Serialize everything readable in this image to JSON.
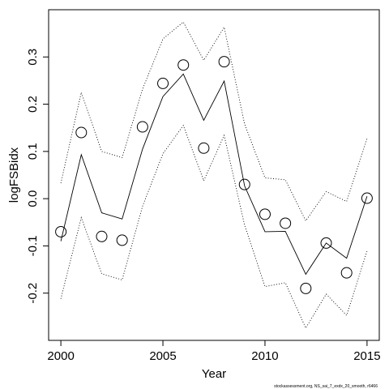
{
  "chart_data": {
    "type": "line",
    "title": "",
    "xlabel": "Year",
    "ylabel": "logFSBidx",
    "footnote": "stockassessment.org, NS_sai_7_exdx_20_smooth, r6466",
    "xlim": [
      1999.4,
      2015.6
    ],
    "ylim": [
      -0.3,
      0.4
    ],
    "x_ticks": [
      2000,
      2005,
      2010,
      2015
    ],
    "y_ticks": [
      -0.2,
      -0.1,
      0.0,
      0.1,
      0.2,
      0.3
    ],
    "x_tick_labels": [
      "2000",
      "2005",
      "2010",
      "2015"
    ],
    "y_tick_labels": [
      "-0.2",
      "-0.1",
      "0.0",
      "0.1",
      "0.2",
      "0.3"
    ],
    "grid": false,
    "x": [
      2000,
      2001,
      2002,
      2003,
      2004,
      2005,
      2006,
      2007,
      2008,
      2009,
      2010,
      2011,
      2012,
      2013,
      2014,
      2015
    ],
    "series": [
      {
        "style": "open-circles",
        "values": [
          -0.07,
          0.14,
          -0.08,
          -0.088,
          0.152,
          0.244,
          0.283,
          0.107,
          0.29,
          0.03,
          -0.033,
          -0.052,
          -0.19,
          -0.094,
          -0.157,
          0.001
        ]
      },
      {
        "style": "solid-line",
        "values": [
          -0.09,
          0.093,
          -0.03,
          -0.043,
          0.105,
          0.216,
          0.264,
          0.166,
          0.249,
          0.027,
          -0.07,
          -0.069,
          -0.16,
          -0.094,
          -0.126,
          0.005
        ]
      },
      {
        "style": "dotted-line",
        "values": [
          -0.212,
          -0.04,
          -0.159,
          -0.172,
          -0.016,
          0.095,
          0.155,
          0.038,
          0.134,
          -0.056,
          -0.186,
          -0.178,
          -0.274,
          -0.202,
          -0.247,
          -0.111
        ]
      },
      {
        "style": "dotted-line",
        "values": [
          0.033,
          0.225,
          0.1,
          0.087,
          0.232,
          0.338,
          0.374,
          0.293,
          0.363,
          0.158,
          0.044,
          0.04,
          -0.047,
          0.015,
          -0.006,
          0.127
        ]
      }
    ]
  }
}
